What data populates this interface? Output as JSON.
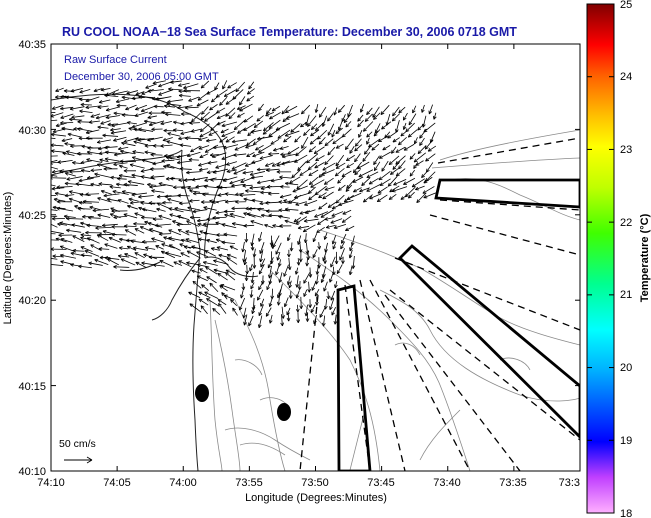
{
  "title": "RU COOL  NOAA−18  Sea Surface Temperature:  December 30, 2006 0718 GMT",
  "overlay": {
    "line1": "Raw Surface Current",
    "line2": "December 30, 2006 05:00 GMT"
  },
  "map": {
    "xlabel": "Longitude (Degrees:Minutes)",
    "ylabel": "Latitude (Degrees:Minutes)",
    "x_ticks": [
      "74:10",
      "74:05",
      "74:00",
      "73:55",
      "73:50",
      "73:45",
      "73:40",
      "73:35",
      "73:3"
    ],
    "y_ticks": [
      "40:35",
      "40:30",
      "40:25",
      "40:20",
      "40:15",
      "40:10"
    ],
    "scale_label": "50 cm/s"
  },
  "colorbar": {
    "label": "Temperature (°C)",
    "range": [
      18,
      25
    ],
    "ticks": [
      "25",
      "24",
      "23",
      "22",
      "21",
      "20",
      "19",
      "18"
    ],
    "colors": [
      "#ff80ff",
      "#c020ff",
      "#0000ff",
      "#00a0ff",
      "#00ffff",
      "#00ff80",
      "#00ff00",
      "#a0ff00",
      "#ffff00",
      "#ffc000",
      "#ff7000",
      "#ff0000",
      "#c00000",
      "#800000"
    ]
  }
}
